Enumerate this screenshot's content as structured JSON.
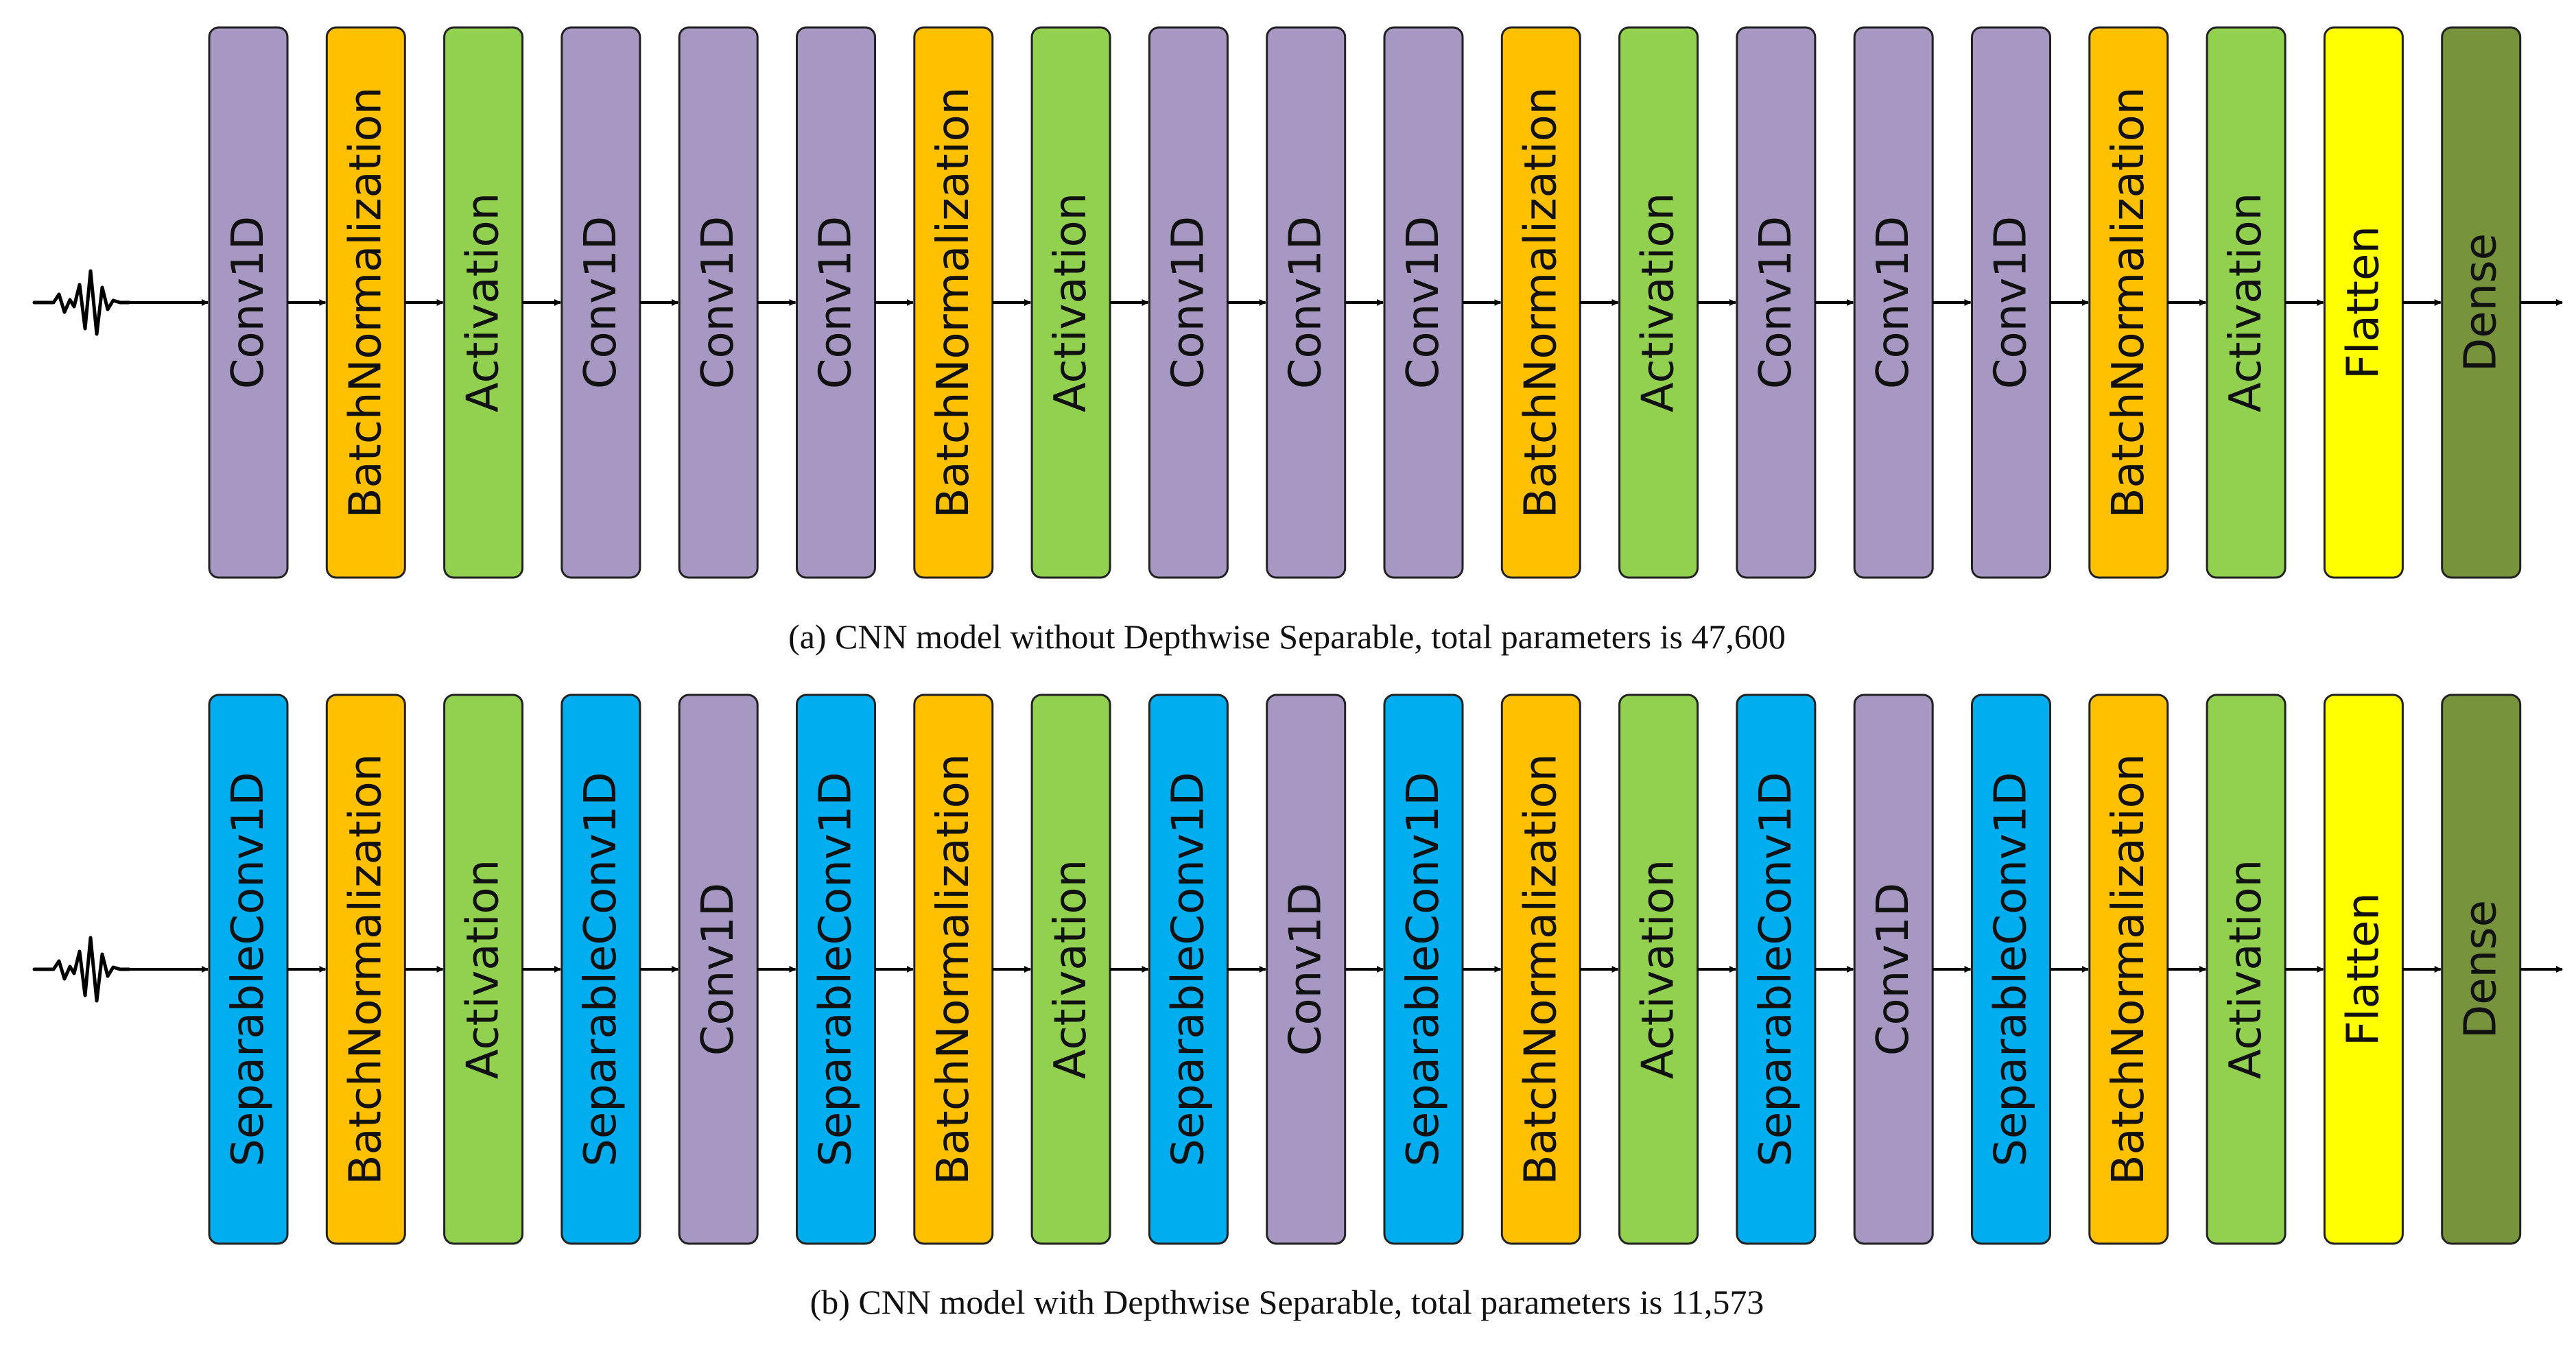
{
  "colors": {
    "Conv1D": "#A797C3",
    "SeparableConv1D": "#00AEEF",
    "BatchNormalization": "#FFC000",
    "Activation": "#92D050",
    "Flatten": "#FFFF00",
    "Dense": "#77933C"
  },
  "diagrams": [
    {
      "id": "a",
      "input_icon": "seismic-waveform-icon",
      "caption": "(a) CNN model without Depthwise Separable, total parameters is 47,600",
      "layers": [
        "Conv1D",
        "BatchNormalization",
        "Activation",
        "Conv1D",
        "Conv1D",
        "Conv1D",
        "BatchNormalization",
        "Activation",
        "Conv1D",
        "Conv1D",
        "Conv1D",
        "BatchNormalization",
        "Activation",
        "Conv1D",
        "Conv1D",
        "Conv1D",
        "BatchNormalization",
        "Activation",
        "Flatten",
        "Dense"
      ]
    },
    {
      "id": "b",
      "input_icon": "seismic-waveform-icon",
      "caption": "(b) CNN model with Depthwise Separable, total parameters is 11,573",
      "layers": [
        "SeparableConv1D",
        "BatchNormalization",
        "Activation",
        "SeparableConv1D",
        "Conv1D",
        "SeparableConv1D",
        "BatchNormalization",
        "Activation",
        "SeparableConv1D",
        "Conv1D",
        "SeparableConv1D",
        "BatchNormalization",
        "Activation",
        "SeparableConv1D",
        "Conv1D",
        "SeparableConv1D",
        "BatchNormalization",
        "Activation",
        "Flatten",
        "Dense"
      ]
    }
  ]
}
